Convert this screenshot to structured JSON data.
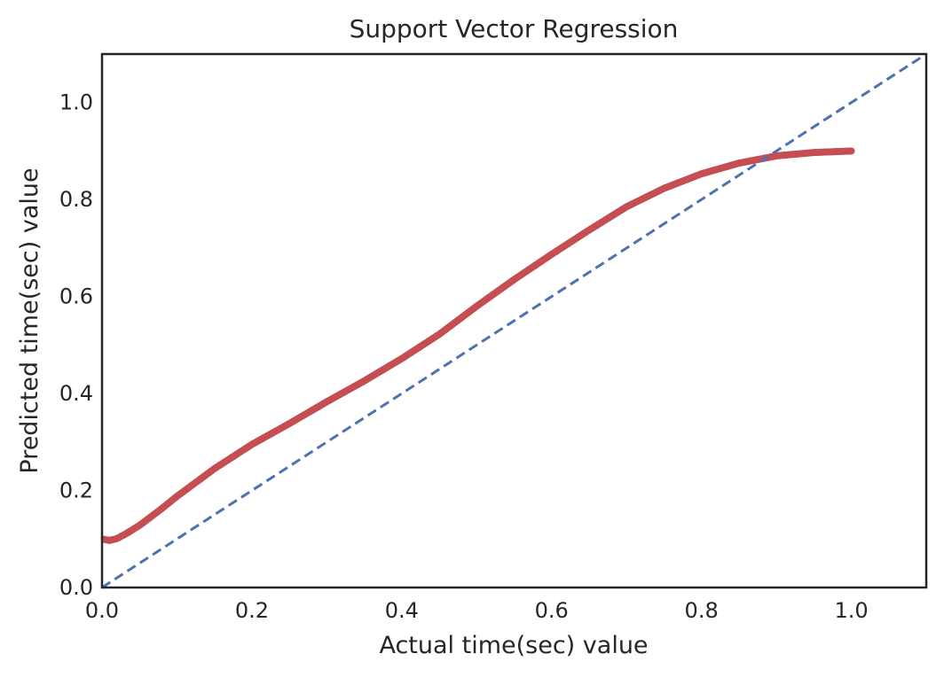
{
  "chart_data": {
    "type": "scatter",
    "title": "Support Vector Regression",
    "xlabel": "Actual time(sec) value",
    "ylabel": "Predicted time(sec) value",
    "xlim": [
      0.0,
      1.1
    ],
    "ylim": [
      0.0,
      1.1
    ],
    "xticks": [
      "0.0",
      "0.2",
      "0.4",
      "0.6",
      "0.8",
      "1.0"
    ],
    "yticks": [
      "0.0",
      "0.2",
      "0.4",
      "0.6",
      "0.8",
      "1.0"
    ],
    "grid": false,
    "legend": "none",
    "colors": {
      "scatter": "#c44e52",
      "reference": "#4c72b0",
      "frame": "#262626",
      "text": "#262626"
    },
    "series": [
      {
        "kind": "scatter",
        "curve": [
          [
            0.0,
            0.1
          ],
          [
            0.01,
            0.097
          ],
          [
            0.02,
            0.101
          ],
          [
            0.03,
            0.109
          ],
          [
            0.05,
            0.128
          ],
          [
            0.08,
            0.163
          ],
          [
            0.1,
            0.188
          ],
          [
            0.15,
            0.245
          ],
          [
            0.2,
            0.295
          ],
          [
            0.25,
            0.338
          ],
          [
            0.3,
            0.383
          ],
          [
            0.35,
            0.426
          ],
          [
            0.4,
            0.472
          ],
          [
            0.45,
            0.522
          ],
          [
            0.5,
            0.58
          ],
          [
            0.55,
            0.635
          ],
          [
            0.6,
            0.687
          ],
          [
            0.65,
            0.737
          ],
          [
            0.7,
            0.785
          ],
          [
            0.75,
            0.823
          ],
          [
            0.8,
            0.853
          ],
          [
            0.85,
            0.875
          ],
          [
            0.9,
            0.89
          ],
          [
            0.95,
            0.897
          ],
          [
            1.0,
            0.9
          ]
        ]
      },
      {
        "kind": "reference-line",
        "style": "dashed",
        "x": [
          0.0,
          1.1
        ],
        "y": [
          0.0,
          1.1
        ]
      }
    ]
  }
}
